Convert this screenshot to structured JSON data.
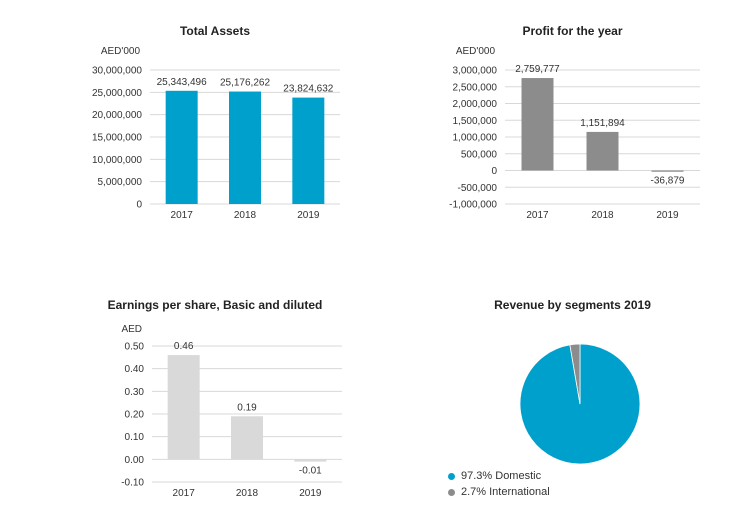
{
  "chart_data": [
    {
      "id": "total-assets",
      "type": "bar",
      "title": "Total Assets",
      "ylabel": "AED'000",
      "categories": [
        "2017",
        "2018",
        "2019"
      ],
      "values": [
        25343496,
        25176262,
        23824632
      ],
      "value_labels": [
        "25,343,496",
        "25,176,262",
        "23,824,632"
      ],
      "ylim": [
        0,
        30000000
      ],
      "yticks": [
        0,
        5000000,
        10000000,
        15000000,
        20000000,
        25000000,
        30000000
      ],
      "ytick_labels": [
        "0",
        "5,000,000",
        "10,000,000",
        "15,000,000",
        "20,000,000",
        "25,000,000",
        "30,000,000"
      ],
      "color": "#00a0cc",
      "grid": true
    },
    {
      "id": "profit",
      "type": "bar",
      "title": "Profit for the year",
      "ylabel": "AED'000",
      "categories": [
        "2017",
        "2018",
        "2019"
      ],
      "values": [
        2759777,
        1151894,
        -36879
      ],
      "value_labels": [
        "2,759,777",
        "1,151,894",
        "-36,879"
      ],
      "ylim": [
        -1000000,
        3000000
      ],
      "yticks": [
        -1000000,
        -500000,
        0,
        500000,
        1000000,
        1500000,
        2000000,
        2500000,
        3000000
      ],
      "ytick_labels": [
        "-1,000,000",
        "-500,000",
        "0",
        "500,000",
        "1,000,000",
        "1,500,000",
        "2,000,000",
        "2,500,000",
        "3,000,000"
      ],
      "color": "#8c8c8c",
      "grid": true
    },
    {
      "id": "eps",
      "type": "bar",
      "title": "Earnings per share, Basic and diluted",
      "ylabel": "AED",
      "categories": [
        "2017",
        "2018",
        "2019"
      ],
      "values": [
        0.46,
        0.19,
        -0.01
      ],
      "value_labels": [
        "0.46",
        "0.19",
        "-0.01"
      ],
      "ylim": [
        -0.1,
        0.5
      ],
      "yticks": [
        -0.1,
        0.0,
        0.1,
        0.2,
        0.3,
        0.4,
        0.5
      ],
      "ytick_labels": [
        "-0.10",
        "0.00",
        "0.10",
        "0.20",
        "0.30",
        "0.40",
        "0.50"
      ],
      "color": "#d9d9d9",
      "grid": true
    },
    {
      "id": "revenue",
      "type": "pie",
      "title": "Revenue by segments 2019",
      "slices": [
        {
          "label": "97.3% Domestic",
          "value": 97.3,
          "color": "#00a0cc"
        },
        {
          "label": "2.7% International",
          "value": 2.7,
          "color": "#8c8c8c"
        }
      ],
      "legend": "bottom-left"
    }
  ]
}
